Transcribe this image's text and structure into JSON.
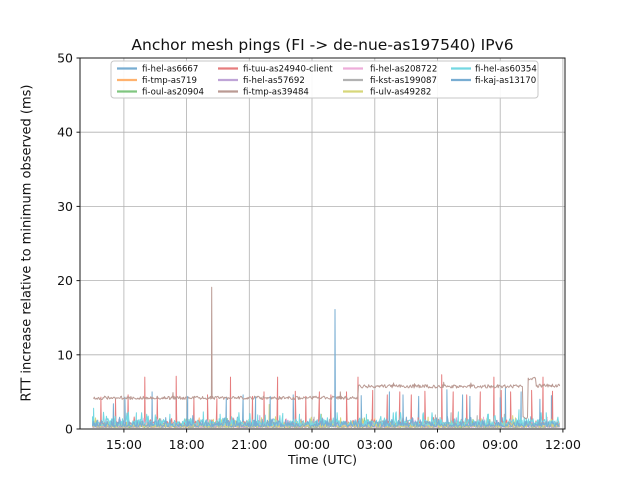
{
  "chart_data": {
    "type": "line",
    "title": "Anchor mesh pings (FI -> de-nue-as197540) IPv6",
    "xlabel": "Time (UTC)",
    "ylabel": "RTT increase relative to minimum observed (ms)",
    "ylim": [
      0,
      50
    ],
    "xlim_hours": [
      12.9,
      36.1
    ],
    "time_hours_start": 13.5,
    "time_hours_end": 35.85,
    "grid": true,
    "legend_position": "upper center inside axes",
    "legend_columns": 4,
    "x_ticks": [
      {
        "hour": 15,
        "label": "15:00"
      },
      {
        "hour": 18,
        "label": "18:00"
      },
      {
        "hour": 21,
        "label": "21:00"
      },
      {
        "hour": 24,
        "label": "00:00"
      },
      {
        "hour": 27,
        "label": "03:00"
      },
      {
        "hour": 30,
        "label": "06:00"
      },
      {
        "hour": 33,
        "label": "09:00"
      },
      {
        "hour": 36,
        "label": "12:00"
      }
    ],
    "y_ticks": [
      {
        "value": 0,
        "label": "0"
      },
      {
        "value": 10,
        "label": "10"
      },
      {
        "value": 20,
        "label": "20"
      },
      {
        "value": 30,
        "label": "30"
      },
      {
        "value": 40,
        "label": "40"
      },
      {
        "value": 50,
        "label": "50"
      }
    ],
    "series": [
      {
        "name": "fi-hel-as6667",
        "color": "#78add2",
        "baseline_ms": 0.15,
        "noise_ms": 0.8,
        "spikes": [
          [
            15.05,
            4.3
          ],
          [
            16.35,
            5.0
          ],
          [
            17.5,
            4.4
          ],
          [
            19.9,
            4.3
          ],
          [
            20.7,
            4.6
          ],
          [
            23.1,
            4.6
          ],
          [
            26.35,
            4.5
          ],
          [
            27.7,
            5.0
          ],
          [
            29.1,
            4.4
          ],
          [
            30.45,
            5.3
          ],
          [
            31.2,
            4.6
          ],
          [
            33.25,
            5.5
          ],
          [
            34.0,
            5.0
          ],
          [
            35.45,
            4.5
          ]
        ]
      },
      {
        "name": "fi-tmp-as719",
        "color": "#ffb26e",
        "baseline_ms": 0.1,
        "noise_ms": 0.7,
        "spikes": [
          [
            18.6,
            1.5
          ],
          [
            27.0,
            1.4
          ],
          [
            33.0,
            1.5
          ]
        ]
      },
      {
        "name": "fi-oul-as20904",
        "color": "#80c680",
        "baseline_ms": 0.1,
        "noise_ms": 0.7,
        "spikes": [
          [
            16.7,
            1.4
          ],
          [
            26.5,
            1.5
          ],
          [
            31.7,
            1.3
          ]
        ]
      },
      {
        "name": "fi-tuu-as24940-client",
        "color": "#e67d7e",
        "baseline_ms": 0.5,
        "noise_ms": 0.6,
        "spikes": [
          [
            13.9,
            4.3
          ],
          [
            14.6,
            4.0
          ],
          [
            15.2,
            4.6
          ],
          [
            16.0,
            7.0
          ],
          [
            16.6,
            4.4
          ],
          [
            17.5,
            7.1
          ],
          [
            18.35,
            4.2
          ],
          [
            19.0,
            4.6
          ],
          [
            19.45,
            4.1
          ],
          [
            20.1,
            7.0
          ],
          [
            21.15,
            4.4
          ],
          [
            21.7,
            5.0
          ],
          [
            22.35,
            7.0
          ],
          [
            23.2,
            5.1
          ],
          [
            23.7,
            4.4
          ],
          [
            24.35,
            5.0
          ],
          [
            24.9,
            4.6
          ],
          [
            25.65,
            5.0
          ],
          [
            26.2,
            7.0
          ],
          [
            26.9,
            5.2
          ],
          [
            27.6,
            4.6
          ],
          [
            28.2,
            5.0
          ],
          [
            28.75,
            4.6
          ],
          [
            29.4,
            5.1
          ],
          [
            30.2,
            7.3
          ],
          [
            30.75,
            5.0
          ],
          [
            31.4,
            4.6
          ],
          [
            32.05,
            5.0
          ],
          [
            32.7,
            7.0
          ],
          [
            33.05,
            5.2
          ],
          [
            33.5,
            5.0
          ],
          [
            34.5,
            5.2
          ],
          [
            35.05,
            7.0
          ],
          [
            35.5,
            5.1
          ]
        ]
      },
      {
        "name": "fi-hel-as57692",
        "color": "#bfa4d7",
        "baseline_ms": 0.1,
        "noise_ms": 0.7,
        "spikes": [
          [
            21.5,
            1.8
          ],
          [
            25.1,
            2.0
          ],
          [
            30.9,
            1.5
          ]
        ]
      },
      {
        "name": "fi-tmp-as39484",
        "color": "#ba9a93",
        "noise_ms": 0.45,
        "segments": [
          [
            13.55,
            26.2,
            4.15
          ],
          [
            26.2,
            34.08,
            5.7
          ],
          [
            34.08,
            34.32,
            1.5
          ],
          [
            34.32,
            34.72,
            6.7
          ],
          [
            34.72,
            35.85,
            5.8
          ]
        ],
        "spikes": [
          [
            17.35,
            4.9
          ],
          [
            19.2,
            19.1
          ],
          [
            25.35,
            5.0
          ],
          [
            27.9,
            6.2
          ],
          [
            28.9,
            6.1
          ],
          [
            30.3,
            6.3
          ],
          [
            31.6,
            6.2
          ]
        ]
      },
      {
        "name": "fi-hel-as208722",
        "color": "#eeadda",
        "baseline_ms": 0.15,
        "noise_ms": 0.7,
        "spikes": [
          [
            24.5,
            1.5
          ],
          [
            27.3,
            1.3
          ],
          [
            32.2,
            1.6
          ]
        ]
      },
      {
        "name": "fi-kst-as199087",
        "color": "#b2b2b2",
        "baseline_ms": 0.1,
        "noise_ms": 0.7,
        "spikes": [
          [
            24.1,
            1.6
          ],
          [
            29.9,
            1.9
          ],
          [
            30.65,
            2.2
          ],
          [
            31.9,
            1.8
          ],
          [
            33.2,
            2.0
          ]
        ]
      },
      {
        "name": "fi-ulv-as49282",
        "color": "#d7d77a",
        "baseline_ms": 0.15,
        "noise_ms": 0.8,
        "spikes": [
          [
            21.95,
            3.3
          ],
          [
            24.45,
            2.0
          ],
          [
            29.55,
            1.6
          ],
          [
            33.6,
            1.8
          ]
        ]
      },
      {
        "name": "fi-hel-as60354",
        "color": "#74d8e2",
        "baseline_ms": 0.3,
        "noise_ms": 1.1,
        "spikes": [
          [
            13.55,
            2.8
          ],
          [
            15.6,
            2.2
          ],
          [
            16.5,
            1.9
          ],
          [
            17.2,
            2.0
          ],
          [
            18.8,
            2.3
          ],
          [
            19.6,
            2.0
          ],
          [
            20.5,
            2.2
          ],
          [
            21.4,
            1.9
          ],
          [
            22.6,
            2.1
          ],
          [
            23.4,
            2.0
          ],
          [
            25.2,
            2.2
          ],
          [
            26.6,
            2.0
          ],
          [
            28.0,
            2.1
          ],
          [
            29.3,
            1.9
          ],
          [
            31.0,
            2.3
          ],
          [
            32.4,
            2.0
          ],
          [
            33.9,
            2.6
          ],
          [
            35.2,
            2.2
          ]
        ]
      },
      {
        "name": "fi-kaj-as13170",
        "color": "#78add2",
        "baseline_ms": 0.2,
        "noise_ms": 0.9,
        "spikes": [
          [
            14.5,
            3.4
          ],
          [
            18.05,
            4.4
          ],
          [
            21.3,
            4.3
          ],
          [
            22.0,
            4.4
          ],
          [
            25.1,
            16.1
          ],
          [
            28.35,
            4.6
          ],
          [
            31.55,
            4.4
          ],
          [
            33.0,
            4.2
          ],
          [
            34.9,
            4.0
          ]
        ]
      }
    ],
    "colors": {
      "grid": "#b0b0b0",
      "spine": "#1a1a1a",
      "legend_border": "#c7c7c7",
      "legend_background": "#ffffff",
      "text": "#111111"
    }
  }
}
